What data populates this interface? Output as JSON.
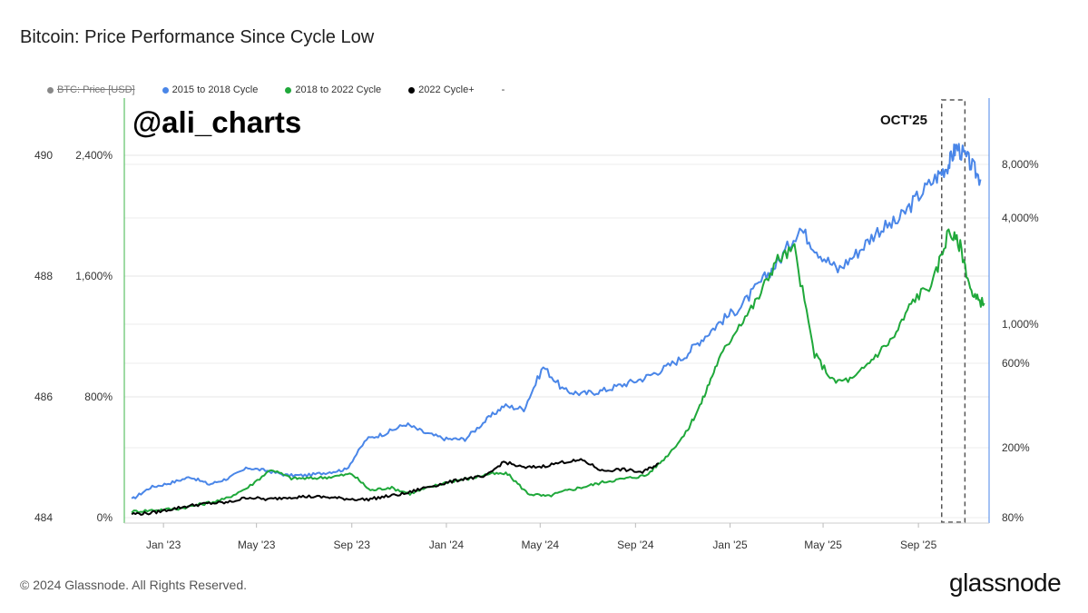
{
  "header": {
    "title": "Bitcoin: Price Performance Since Cycle Low"
  },
  "legend": {
    "items": [
      {
        "label": "BTC: Price [USD]",
        "color": "#888888",
        "disabled": true
      },
      {
        "label": "2015 to 2018 Cycle",
        "color": "#4a86e8",
        "disabled": false
      },
      {
        "label": "2018 to 2022 Cycle",
        "color": "#1fa83a",
        "disabled": false
      },
      {
        "label": "2022 Cycle+",
        "color": "#000000",
        "disabled": false
      }
    ],
    "trailing": "-"
  },
  "footer": {
    "copyright": "© 2024 Glassnode. All Rights Reserved.",
    "brand": "glassnode"
  },
  "chart_data": {
    "type": "line",
    "watermark": "@ali_charts",
    "annotation": "OCT'25",
    "x_ticks": [
      "Jan '23",
      "May '23",
      "Sep '23",
      "Jan '24",
      "May '24",
      "Sep '24",
      "Jan '25",
      "May '25",
      "Sep '25"
    ],
    "y_left_outer_ticks": [
      "484",
      "486",
      "488",
      "490"
    ],
    "y_left_ticks": [
      "0%",
      "800%",
      "1,600%",
      "2,400%"
    ],
    "y_right_ticks": [
      "80%",
      "200%",
      "600%",
      "1,000%",
      "4,000%",
      "8,000%"
    ],
    "y_left_range": [
      0,
      2400
    ],
    "highlight_range": [
      "2025-10-01",
      "2025-10-31"
    ],
    "series": [
      {
        "name": "2015 to 2018 Cycle",
        "color": "#4a86e8",
        "x": [
          "2022-11-21",
          "2022-12-15",
          "2023-01-10",
          "2023-02-05",
          "2023-03-01",
          "2023-03-25",
          "2023-04-20",
          "2023-05-15",
          "2023-06-10",
          "2023-07-05",
          "2023-08-01",
          "2023-08-25",
          "2023-09-20",
          "2023-10-15",
          "2023-11-10",
          "2023-12-05",
          "2024-01-01",
          "2024-01-25",
          "2024-02-20",
          "2024-03-15",
          "2024-04-10",
          "2024-05-05",
          "2024-06-01",
          "2024-06-25",
          "2024-07-20",
          "2024-08-15",
          "2024-09-10",
          "2024-10-05",
          "2024-11-01",
          "2024-11-25",
          "2024-12-20",
          "2025-01-15",
          "2025-02-10",
          "2025-03-05",
          "2025-04-01",
          "2025-04-25",
          "2025-05-20",
          "2025-06-15",
          "2025-07-10",
          "2025-08-05",
          "2025-08-30",
          "2025-09-25",
          "2025-10-10",
          "2025-10-20",
          "2025-11-05",
          "2025-11-20"
        ],
        "values": [
          120,
          200,
          230,
          270,
          220,
          260,
          330,
          310,
          280,
          280,
          300,
          320,
          520,
          560,
          620,
          560,
          520,
          520,
          640,
          740,
          720,
          1000,
          840,
          820,
          840,
          880,
          920,
          980,
          1060,
          1180,
          1300,
          1400,
          1560,
          1700,
          1920,
          1760,
          1640,
          1760,
          1900,
          1960,
          2120,
          2260,
          2340,
          2460,
          2360,
          2240
        ]
      },
      {
        "name": "2018 to 2022 Cycle",
        "color": "#1fa83a",
        "x": [
          "2022-11-21",
          "2022-12-20",
          "2023-01-20",
          "2023-02-20",
          "2023-03-20",
          "2023-04-20",
          "2023-05-20",
          "2023-06-15",
          "2023-07-10",
          "2023-08-05",
          "2023-09-01",
          "2023-09-25",
          "2023-10-20",
          "2023-11-15",
          "2023-12-10",
          "2024-01-05",
          "2024-02-01",
          "2024-02-25",
          "2024-03-20",
          "2024-04-15",
          "2024-05-10",
          "2024-06-05",
          "2024-07-01",
          "2024-07-25",
          "2024-08-20",
          "2024-09-15",
          "2024-10-10",
          "2024-11-05",
          "2024-11-25",
          "2024-12-15",
          "2025-01-10",
          "2025-02-05",
          "2025-03-01",
          "2025-03-25",
          "2025-04-20",
          "2025-05-15",
          "2025-06-10",
          "2025-07-05",
          "2025-08-01",
          "2025-08-25",
          "2025-09-20",
          "2025-10-10",
          "2025-10-25",
          "2025-11-10",
          "2025-11-25"
        ],
        "values": [
          40,
          50,
          60,
          90,
          120,
          200,
          320,
          260,
          260,
          270,
          290,
          180,
          200,
          160,
          200,
          240,
          260,
          290,
          290,
          160,
          140,
          180,
          210,
          240,
          260,
          280,
          400,
          560,
          760,
          1020,
          1260,
          1440,
          1700,
          1780,
          1080,
          900,
          920,
          1060,
          1200,
          1440,
          1560,
          1900,
          1800,
          1460,
          1420
        ]
      },
      {
        "name": "2022 Cycle+",
        "color": "#000000",
        "x": [
          "2022-11-21",
          "2022-12-15",
          "2023-01-10",
          "2023-02-05",
          "2023-03-01",
          "2023-03-25",
          "2023-04-20",
          "2023-05-15",
          "2023-06-10",
          "2023-07-05",
          "2023-08-01",
          "2023-08-25",
          "2023-09-20",
          "2023-10-15",
          "2023-11-10",
          "2023-12-05",
          "2024-01-01",
          "2024-01-25",
          "2024-02-20",
          "2024-03-15",
          "2024-04-10",
          "2024-05-05",
          "2024-06-01",
          "2024-06-25",
          "2024-07-20",
          "2024-08-15",
          "2024-09-10",
          "2024-10-01"
        ],
        "values": [
          25,
          30,
          55,
          80,
          95,
          100,
          135,
          120,
          135,
          140,
          135,
          125,
          120,
          140,
          160,
          200,
          230,
          260,
          270,
          370,
          330,
          340,
          370,
          380,
          310,
          320,
          300,
          360
        ]
      }
    ]
  }
}
